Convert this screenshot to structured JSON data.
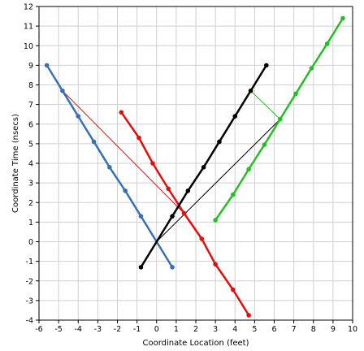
{
  "chart_data": {
    "type": "line",
    "xlabel": "Coordinate Location (feet)",
    "ylabel": "Coordinate Time (nsecs)",
    "xlim": [
      -6,
      10
    ],
    "ylim": [
      -4,
      12
    ],
    "x_ticks": [
      "-6",
      "-5",
      "-4",
      "-3",
      "-2",
      "-1",
      "0",
      "1",
      "2",
      "3",
      "4",
      "5",
      "6",
      "7",
      "8",
      "9",
      "10"
    ],
    "y_ticks": [
      "-4",
      "-3",
      "-2",
      "-1",
      "0",
      "1",
      "2",
      "3",
      "4",
      "5",
      "6",
      "7",
      "8",
      "9",
      "10",
      "11",
      "12"
    ],
    "grid": true,
    "series": [
      {
        "color": "#3a6fb5",
        "points": [
          [
            -5.6,
            9.0
          ],
          [
            -4.8,
            7.7
          ],
          [
            -4.0,
            6.4
          ],
          [
            -3.2,
            5.1
          ],
          [
            -2.4,
            3.8
          ],
          [
            -1.6,
            2.6
          ],
          [
            -0.8,
            1.3
          ],
          [
            0.8,
            -1.3
          ]
        ]
      },
      {
        "color": "#e01010",
        "points": [
          [
            -1.8,
            6.6
          ],
          [
            -0.9,
            5.3
          ],
          [
            -0.2,
            4.0
          ],
          [
            0.6,
            2.7
          ],
          [
            1.4,
            1.45
          ],
          [
            2.3,
            0.15
          ],
          [
            3.0,
            -1.15
          ],
          [
            3.9,
            -2.45
          ],
          [
            4.7,
            -3.75
          ]
        ]
      },
      {
        "color": "#000000",
        "points": [
          [
            -0.8,
            -1.3
          ],
          [
            0.8,
            1.3
          ],
          [
            1.6,
            2.6
          ],
          [
            2.4,
            3.8
          ],
          [
            3.2,
            5.1
          ],
          [
            4.0,
            6.4
          ],
          [
            4.8,
            7.7
          ],
          [
            5.6,
            9.0
          ]
        ]
      },
      {
        "color": "#22c022",
        "points": [
          [
            3.0,
            1.1
          ],
          [
            3.9,
            2.4
          ],
          [
            4.7,
            3.7
          ],
          [
            5.5,
            4.95
          ],
          [
            6.3,
            6.25
          ],
          [
            7.1,
            7.55
          ],
          [
            7.9,
            8.85
          ],
          [
            8.7,
            10.1
          ],
          [
            9.5,
            11.4
          ]
        ]
      }
    ],
    "connectors": [
      {
        "color": "#e01010",
        "from": [
          -4.8,
          7.7
        ],
        "to": [
          1.4,
          1.45
        ]
      },
      {
        "color": "#000000",
        "from": [
          0.0,
          0.0
        ],
        "to": [
          6.3,
          6.25
        ]
      },
      {
        "color": "#22c022",
        "from": [
          4.8,
          7.7
        ],
        "to": [
          6.3,
          6.25
        ]
      }
    ]
  }
}
